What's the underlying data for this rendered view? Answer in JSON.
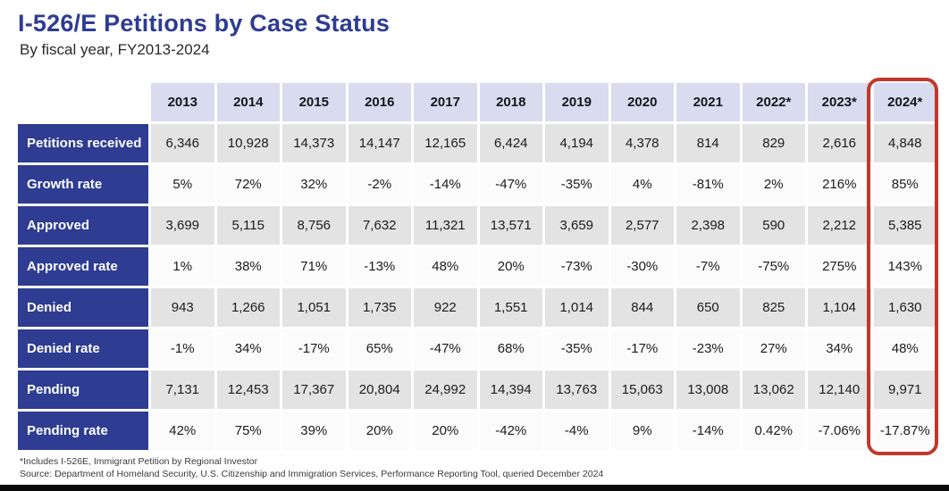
{
  "chart_data": {
    "type": "table",
    "title": "I-526/E Petitions by Case Status",
    "subtitle": "By fiscal year, FY2013-2024",
    "columns": [
      "2013",
      "2014",
      "2015",
      "2016",
      "2017",
      "2018",
      "2019",
      "2020",
      "2021",
      "2022*",
      "2023*",
      "2024*"
    ],
    "rows": [
      {
        "label": "Petitions received",
        "values": [
          "6,346",
          "10,928",
          "14,373",
          "14,147",
          "12,165",
          "6,424",
          "4,194",
          "4,378",
          "814",
          "829",
          "2,616",
          "4,848"
        ]
      },
      {
        "label": "Growth rate",
        "values": [
          "5%",
          "72%",
          "32%",
          "-2%",
          "-14%",
          "-47%",
          "-35%",
          "4%",
          "-81%",
          "2%",
          "216%",
          "85%"
        ]
      },
      {
        "label": "Approved",
        "values": [
          "3,699",
          "5,115",
          "8,756",
          "7,632",
          "11,321",
          "13,571",
          "3,659",
          "2,577",
          "2,398",
          "590",
          "2,212",
          "5,385"
        ]
      },
      {
        "label": "Approved rate",
        "values": [
          "1%",
          "38%",
          "71%",
          "-13%",
          "48%",
          "20%",
          "-73%",
          "-30%",
          "-7%",
          "-75%",
          "275%",
          "143%"
        ]
      },
      {
        "label": "Denied",
        "values": [
          "943",
          "1,266",
          "1,051",
          "1,735",
          "922",
          "1,551",
          "1,014",
          "844",
          "650",
          "825",
          "1,104",
          "1,630"
        ]
      },
      {
        "label": "Denied rate",
        "values": [
          "-1%",
          "34%",
          "-17%",
          "65%",
          "-47%",
          "68%",
          "-35%",
          "-17%",
          "-23%",
          "27%",
          "34%",
          "48%"
        ]
      },
      {
        "label": "Pending",
        "values": [
          "7,131",
          "12,453",
          "17,367",
          "20,804",
          "24,992",
          "14,394",
          "13,763",
          "15,063",
          "13,008",
          "13,062",
          "12,140",
          "9,971"
        ]
      },
      {
        "label": "Pending rate",
        "values": [
          "42%",
          "75%",
          "39%",
          "20%",
          "20%",
          "-42%",
          "-4%",
          "9%",
          "-14%",
          "0.42%",
          "-7.06%",
          "-17.87%"
        ]
      }
    ],
    "highlighted_column": "2024*",
    "annotations": [
      "Red rounded outline highlights the 2024* column"
    ]
  },
  "footnotes": {
    "note": "*Includes I-526E, Immigrant Petition by Regional Investor",
    "source": "Source: Department of Homeland Security, U.S. Citizenship and Immigration Services, Performance Reporting Tool, queried December 2024"
  },
  "colors": {
    "title_blue": "#2e3c92",
    "row_label_bg": "#2e3c92",
    "header_bg": "#d8dcee",
    "count_row_bg": "#e3e3e3",
    "rate_row_bg": "#fbfbfb",
    "highlight_red": "#c0392b"
  }
}
